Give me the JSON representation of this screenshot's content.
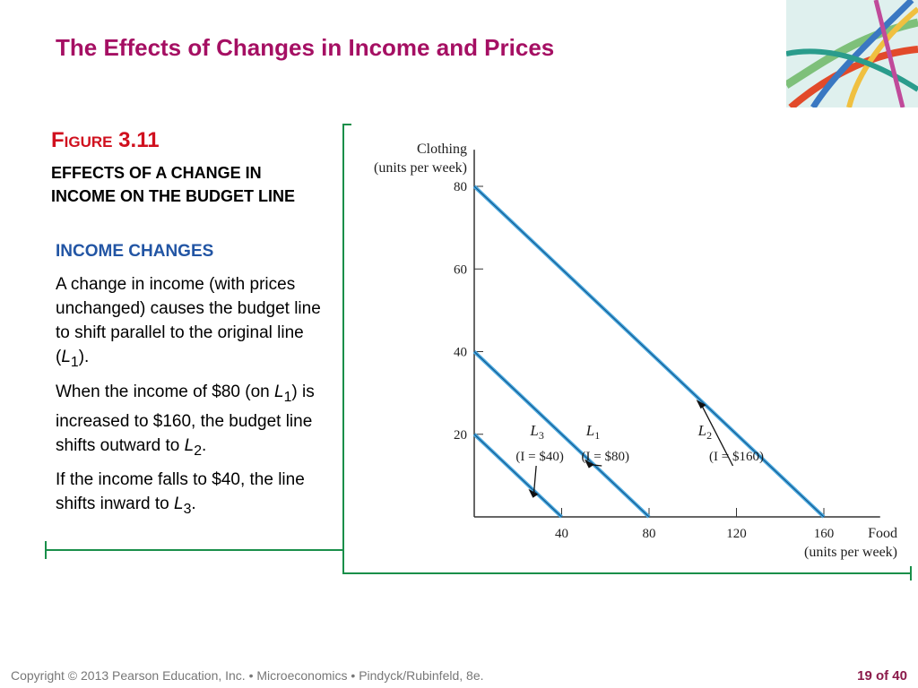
{
  "slide": {
    "title": "The Effects of Changes in Income and Prices",
    "figure_word": "Figure",
    "figure_number": "3.11",
    "figure_caption": "EFFECTS OF A CHANGE IN INCOME ON THE BUDGET LINE",
    "section_heading": "INCOME CHANGES",
    "paragraph1_text": "A change in income (with prices unchanged) causes the budget line to shift parallel to the original line (",
    "paragraph1_L": "L",
    "paragraph1_sub": "1",
    "paragraph1_end": ").",
    "paragraph2_text": "When the income of $80 (on ",
    "paragraph2_L": "L",
    "paragraph2_sub": "1",
    "paragraph2_mid": ") is increased to $160, the budget line shifts outward to ",
    "paragraph2_L2": "L",
    "paragraph2_sub2": "2",
    "paragraph2_end": ".",
    "paragraph3_text": "If the income falls to $40, the line shifts inward to ",
    "paragraph3_L": "L",
    "paragraph3_sub": "3",
    "paragraph3_end": ".",
    "footer": "Copyright © 2013  Pearson Education, Inc. •  Microeconomics  •  Pindyck/Rubinfeld, 8e.",
    "page_label": "19 of 40"
  },
  "colors": {
    "title": "#a50f63",
    "figure_label": "#d0101e",
    "section_heading": "#2255a4",
    "frame": "#1a8f4a",
    "budget_line": "#4aa8de",
    "footer": "#777777"
  },
  "chart_data": {
    "type": "line",
    "xlabel": "Food",
    "xlabel_units": "(units per week)",
    "ylabel": "Clothing",
    "ylabel_units": "(units per week)",
    "xlim": [
      0,
      180
    ],
    "ylim": [
      0,
      88
    ],
    "x_ticks": [
      40,
      80,
      120,
      160
    ],
    "y_ticks": [
      20,
      40,
      60,
      80
    ],
    "series": [
      {
        "id": "L3",
        "name": "L",
        "sub": "3",
        "income": "(I = $40)",
        "x": [
          0,
          40
        ],
        "y": [
          20,
          0
        ]
      },
      {
        "id": "L1",
        "name": "L",
        "sub": "1",
        "income": "(I = $80)",
        "x": [
          0,
          80
        ],
        "y": [
          40,
          0
        ]
      },
      {
        "id": "L2",
        "name": "L",
        "sub": "2",
        "income": "(I = $160)",
        "x": [
          0,
          160
        ],
        "y": [
          80,
          0
        ]
      }
    ]
  }
}
